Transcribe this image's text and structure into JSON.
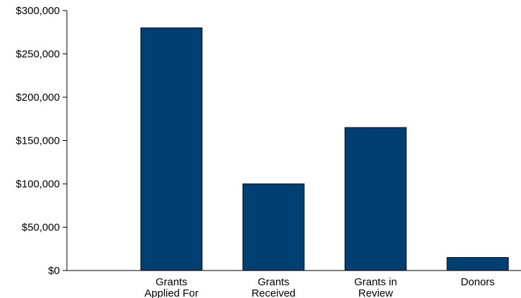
{
  "chart_data": {
    "type": "bar",
    "categories": [
      "Grants Applied For",
      "Grants Received",
      "Grants in Review",
      "Donors"
    ],
    "category_label_lines": [
      [
        "Grants",
        "Applied For"
      ],
      [
        "Grants",
        "Received"
      ],
      [
        "Grants in",
        "Review"
      ],
      [
        "Donors"
      ]
    ],
    "values": [
      280000,
      100000,
      165000,
      15000
    ],
    "ylim": [
      0,
      300000
    ],
    "yticks": [
      0,
      50000,
      100000,
      150000,
      200000,
      250000,
      300000
    ],
    "ytick_labels": [
      "$0",
      "$50,000",
      "$100,000",
      "$150,000",
      "$200,000",
      "$250,000",
      "$300,000"
    ],
    "title": "",
    "xlabel": "",
    "ylabel": "",
    "grid": false,
    "legend": "none",
    "colors": {
      "bar": "#003f72",
      "bar_edge": "#000000",
      "axis": "#000000",
      "text": "#000000",
      "background": "#ffffff"
    }
  }
}
